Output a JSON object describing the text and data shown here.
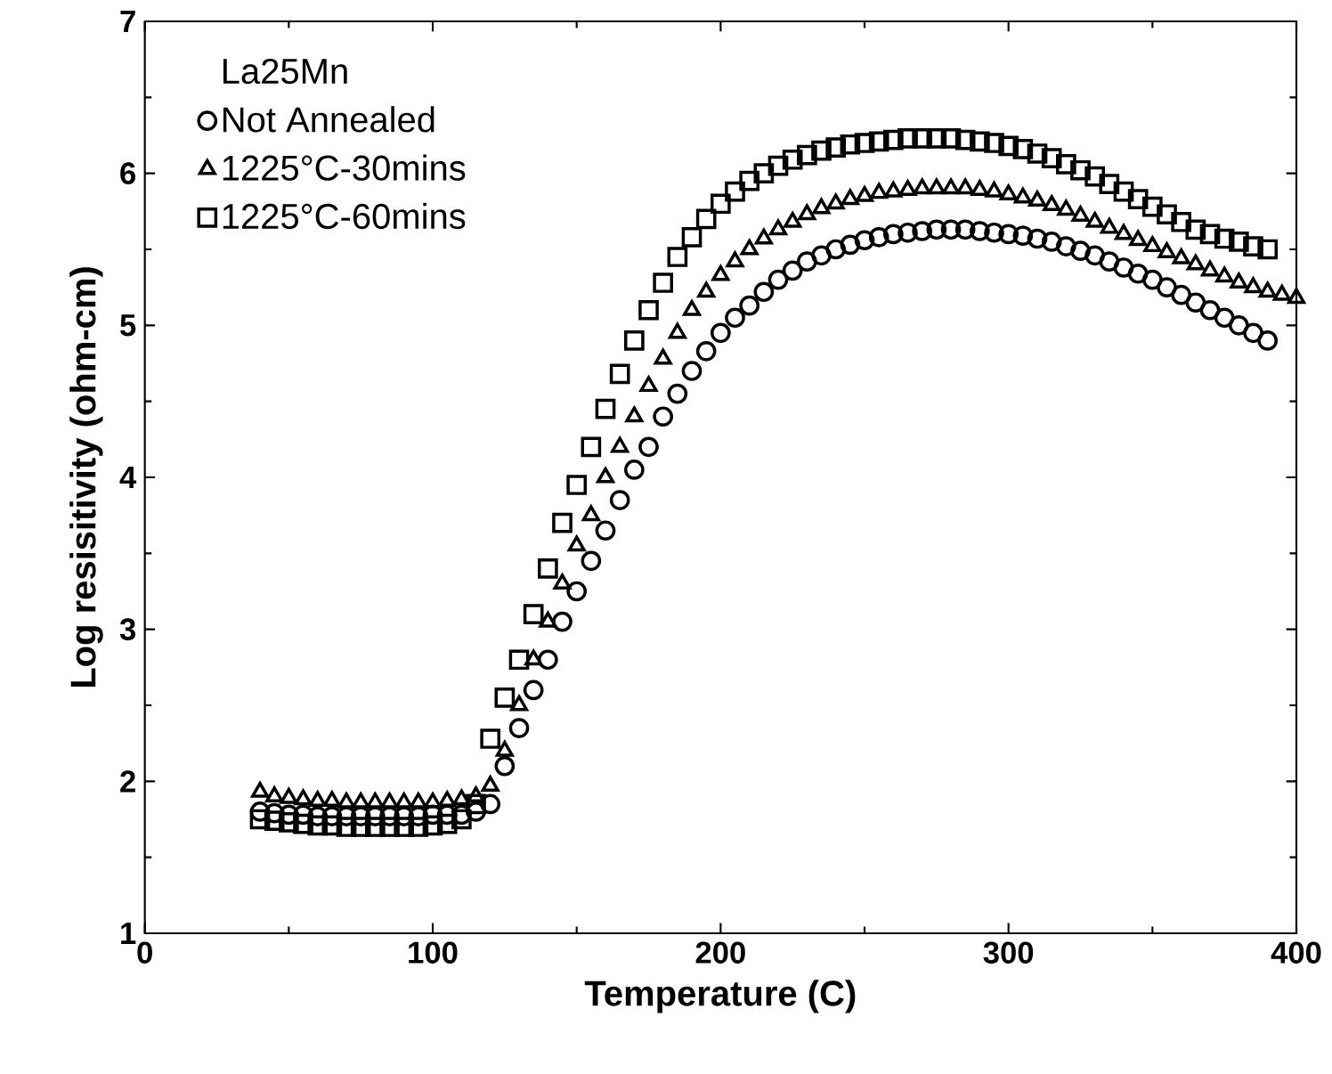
{
  "chart_data": {
    "type": "scatter",
    "xlabel": "Temperature (C)",
    "ylabel": "Log resisitivity (ohm-cm)",
    "legend_title": "La25Mn",
    "xlim": [
      0,
      400
    ],
    "ylim": [
      1,
      7
    ],
    "xticks": [
      0,
      100,
      200,
      300,
      400
    ],
    "yticks": [
      1,
      2,
      3,
      4,
      5,
      6,
      7
    ],
    "grid": false,
    "legend": "top left",
    "series": [
      {
        "name": "Not Annealed",
        "color": "#000000",
        "marker": "circle",
        "x": [
          40,
          45,
          50,
          55,
          60,
          65,
          70,
          75,
          80,
          85,
          90,
          95,
          100,
          105,
          110,
          115,
          120,
          125,
          130,
          135,
          140,
          145,
          150,
          155,
          160,
          165,
          170,
          175,
          180,
          185,
          190,
          195,
          200,
          205,
          210,
          215,
          220,
          225,
          230,
          235,
          240,
          245,
          250,
          255,
          260,
          265,
          270,
          275,
          280,
          285,
          290,
          295,
          300,
          305,
          310,
          315,
          320,
          325,
          330,
          335,
          340,
          345,
          350,
          355,
          360,
          365,
          370,
          375,
          380,
          385,
          390
        ],
        "values": [
          1.8,
          1.79,
          1.78,
          1.78,
          1.77,
          1.77,
          1.77,
          1.77,
          1.77,
          1.77,
          1.77,
          1.77,
          1.78,
          1.78,
          1.78,
          1.8,
          1.85,
          2.1,
          2.35,
          2.6,
          2.8,
          3.05,
          3.25,
          3.45,
          3.65,
          3.85,
          4.05,
          4.2,
          4.4,
          4.55,
          4.7,
          4.83,
          4.95,
          5.05,
          5.13,
          5.22,
          5.3,
          5.36,
          5.42,
          5.46,
          5.5,
          5.53,
          5.56,
          5.58,
          5.6,
          5.61,
          5.62,
          5.63,
          5.63,
          5.63,
          5.62,
          5.61,
          5.6,
          5.59,
          5.57,
          5.55,
          5.52,
          5.49,
          5.46,
          5.42,
          5.38,
          5.34,
          5.3,
          5.25,
          5.2,
          5.15,
          5.1,
          5.05,
          5.0,
          4.95,
          4.9
        ]
      },
      {
        "name": "1225°C-30mins",
        "color": "#000000",
        "marker": "triangle",
        "x": [
          40,
          45,
          50,
          55,
          60,
          65,
          70,
          75,
          80,
          85,
          90,
          95,
          100,
          105,
          110,
          115,
          120,
          125,
          130,
          135,
          140,
          145,
          150,
          155,
          160,
          165,
          170,
          175,
          180,
          185,
          190,
          195,
          200,
          205,
          210,
          215,
          220,
          225,
          230,
          235,
          240,
          245,
          250,
          255,
          260,
          265,
          270,
          275,
          280,
          285,
          290,
          295,
          300,
          305,
          310,
          315,
          320,
          325,
          330,
          335,
          340,
          345,
          350,
          355,
          360,
          365,
          370,
          375,
          380,
          385,
          390,
          395,
          400
        ],
        "values": [
          1.93,
          1.9,
          1.89,
          1.88,
          1.87,
          1.87,
          1.86,
          1.86,
          1.86,
          1.86,
          1.86,
          1.86,
          1.86,
          1.87,
          1.88,
          1.9,
          1.97,
          2.2,
          2.5,
          2.8,
          3.05,
          3.3,
          3.55,
          3.75,
          4.0,
          4.2,
          4.4,
          4.6,
          4.78,
          4.95,
          5.1,
          5.22,
          5.33,
          5.42,
          5.5,
          5.57,
          5.63,
          5.68,
          5.73,
          5.77,
          5.8,
          5.83,
          5.85,
          5.87,
          5.88,
          5.89,
          5.9,
          5.9,
          5.9,
          5.9,
          5.89,
          5.88,
          5.86,
          5.84,
          5.82,
          5.79,
          5.76,
          5.72,
          5.68,
          5.64,
          5.6,
          5.56,
          5.52,
          5.48,
          5.44,
          5.4,
          5.36,
          5.32,
          5.28,
          5.25,
          5.22,
          5.2,
          5.18
        ]
      },
      {
        "name": "1225°C-60mins",
        "color": "#000000",
        "marker": "square",
        "x": [
          40,
          45,
          50,
          55,
          60,
          65,
          70,
          75,
          80,
          85,
          90,
          95,
          100,
          105,
          110,
          115,
          120,
          125,
          130,
          135,
          140,
          145,
          150,
          155,
          160,
          165,
          170,
          175,
          180,
          185,
          190,
          195,
          200,
          205,
          210,
          215,
          220,
          225,
          230,
          235,
          240,
          245,
          250,
          255,
          260,
          265,
          270,
          275,
          280,
          285,
          290,
          295,
          300,
          305,
          310,
          315,
          320,
          325,
          330,
          335,
          340,
          345,
          350,
          355,
          360,
          365,
          370,
          375,
          380,
          385,
          390
        ],
        "values": [
          1.75,
          1.74,
          1.73,
          1.72,
          1.71,
          1.71,
          1.7,
          1.7,
          1.7,
          1.7,
          1.7,
          1.7,
          1.71,
          1.72,
          1.75,
          1.85,
          2.28,
          2.55,
          2.8,
          3.1,
          3.4,
          3.7,
          3.95,
          4.2,
          4.45,
          4.68,
          4.9,
          5.1,
          5.28,
          5.45,
          5.58,
          5.7,
          5.8,
          5.88,
          5.95,
          6.0,
          6.05,
          6.09,
          6.12,
          6.15,
          6.17,
          6.19,
          6.2,
          6.21,
          6.22,
          6.23,
          6.23,
          6.23,
          6.23,
          6.22,
          6.21,
          6.2,
          6.18,
          6.16,
          6.13,
          6.1,
          6.06,
          6.02,
          5.98,
          5.93,
          5.88,
          5.83,
          5.78,
          5.73,
          5.68,
          5.63,
          5.6,
          5.57,
          5.55,
          5.52,
          5.5
        ]
      }
    ]
  }
}
